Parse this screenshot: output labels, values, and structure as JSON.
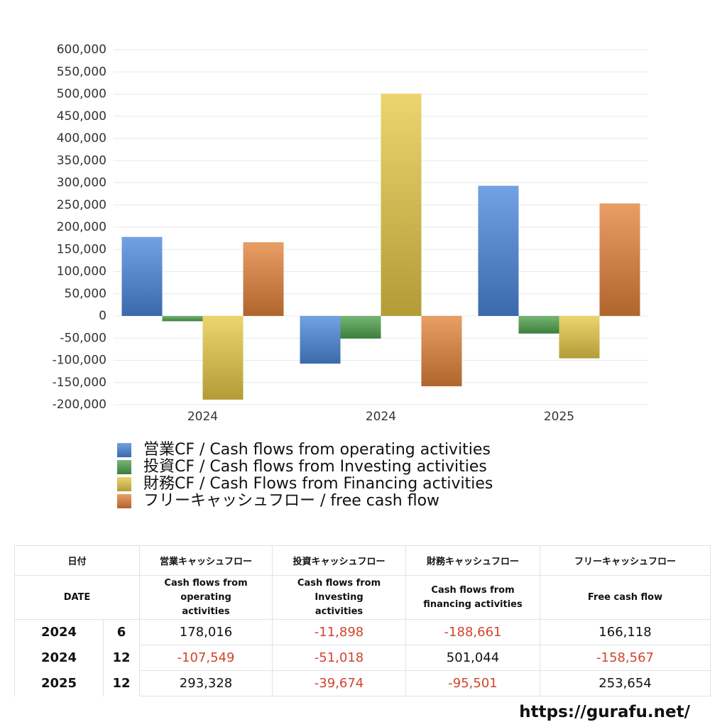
{
  "chart_data": {
    "type": "bar",
    "categories": [
      "2024",
      "2024",
      "2025"
    ],
    "series": [
      {
        "name": "営業CF / Cash flows from operating activities",
        "color": "#4a86dc",
        "values": [
          178016,
          -107549,
          293328
        ]
      },
      {
        "name": "投資CF / Cash flows from Investing activities",
        "color": "#4ea24e",
        "values": [
          -11898,
          -51018,
          -39674
        ]
      },
      {
        "name": "財務CF / Cash Flows from Financing activities",
        "color": "#e6c846",
        "values": [
          -188661,
          501044,
          -95501
        ]
      },
      {
        "name": "フリーキャッシュフロー / free cash flow",
        "color": "#e2823a",
        "values": [
          166118,
          -158567,
          253654
        ]
      }
    ],
    "ylim": [
      -200000,
      600000
    ],
    "yticks": [
      {
        "value": -200000,
        "label": "-200,000"
      },
      {
        "value": -150000,
        "label": "-150,000"
      },
      {
        "value": -100000,
        "label": "-100,000"
      },
      {
        "value": -50000,
        "label": "-50,000"
      },
      0,
      {
        "value": 50000,
        "label": "50,000"
      },
      {
        "value": 100000,
        "label": "100,000"
      },
      {
        "value": 150000,
        "label": "150,000"
      },
      {
        "value": 200000,
        "label": "200,000"
      },
      {
        "value": 250000,
        "label": "250,000"
      },
      {
        "value": 300000,
        "label": "300,000"
      },
      {
        "value": 350000,
        "label": "350,000"
      },
      {
        "value": 400000,
        "label": "400,000"
      },
      {
        "value": 450000,
        "label": "450,000"
      },
      {
        "value": 500000,
        "label": "500,000"
      },
      {
        "value": 550000,
        "label": "550,000"
      },
      {
        "value": 600000,
        "label": "600,000"
      }
    ],
    "grid": true,
    "legend": "bottom"
  },
  "table": {
    "header": [
      "日付",
      "営業キャッシュフロー",
      "投資キャッシュフロー",
      "財務キャッシュフロー",
      "フリーキャッシュフロー"
    ],
    "subheader": [
      "DATE",
      "Cash flows from operating activities",
      "Cash flows from Investing activities",
      "Cash flows from financing activities",
      "Free cash flow"
    ],
    "rows": [
      [
        "2024",
        "6",
        "178,016",
        "-11,898",
        "-188,661",
        "166,118"
      ],
      [
        "2024",
        "12",
        "-107,549",
        "-51,018",
        "501,044",
        "-158,567"
      ],
      [
        "2025",
        "12",
        "293,328",
        "-39,674",
        "-95,501",
        "253,654"
      ]
    ]
  },
  "footer": "https://gurafu.net/"
}
